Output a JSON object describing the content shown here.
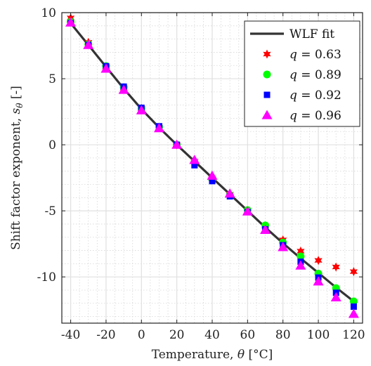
{
  "chart_data": {
    "type": "scatter",
    "xlabel": "Temperature, θ [°C]",
    "ylabel": "Shift factor exponent, s_θ [-]",
    "xlim": [
      -45,
      125
    ],
    "ylim": [
      -13.5,
      10
    ],
    "x_ticks": [
      -40,
      -20,
      0,
      20,
      40,
      60,
      80,
      100,
      120
    ],
    "x_tick_labels": [
      "-40",
      "-20",
      "0",
      "20",
      "40",
      "60",
      "80",
      "100",
      "120"
    ],
    "y_ticks": [
      -10,
      -5,
      0,
      5,
      10
    ],
    "y_tick_labels": [
      "-10",
      "-5",
      "0",
      "5",
      "10"
    ],
    "grid": true,
    "minor_grid": true,
    "legend_position": "top-right",
    "fit": {
      "name": "WLF fit",
      "color": "#333333",
      "x": [
        -40,
        -30,
        -20,
        -10,
        0,
        10,
        20,
        30,
        40,
        50,
        60,
        70,
        80,
        90,
        100,
        110,
        120
      ],
      "y": [
        9.2,
        7.55,
        5.9,
        4.25,
        2.7,
        1.3,
        0.0,
        -1.25,
        -2.5,
        -3.75,
        -5.0,
        -6.25,
        -7.45,
        -8.6,
        -9.7,
        -10.8,
        -11.85
      ]
    },
    "series": [
      {
        "name": "q = 0.63",
        "marker": "star",
        "color": "#ff0000",
        "x": [
          -40,
          -30,
          -20,
          -10,
          0,
          10,
          20,
          30,
          40,
          50,
          60,
          70,
          80,
          90,
          100,
          110,
          120
        ],
        "y": [
          9.6,
          7.75,
          5.9,
          4.3,
          2.75,
          1.3,
          0.0,
          -1.25,
          -2.55,
          -3.75,
          -5.0,
          -6.15,
          -7.2,
          -8.05,
          -8.75,
          -9.25,
          -9.6
        ]
      },
      {
        "name": "q = 0.89",
        "marker": "circle",
        "color": "#00ff00",
        "x": [
          -40,
          -30,
          -20,
          -10,
          0,
          10,
          20,
          30,
          40,
          50,
          60,
          70,
          80,
          90,
          100,
          110,
          120
        ],
        "y": [
          9.3,
          7.6,
          5.95,
          4.35,
          2.75,
          1.35,
          0.0,
          -1.3,
          -2.6,
          -3.8,
          -4.95,
          -6.1,
          -7.4,
          -8.45,
          -9.75,
          -10.85,
          -11.85
        ]
      },
      {
        "name": "q = 0.92",
        "marker": "square",
        "color": "#0000ff",
        "x": [
          -40,
          -30,
          -20,
          -10,
          0,
          10,
          20,
          30,
          40,
          50,
          60,
          70,
          80,
          90,
          100,
          110,
          120
        ],
        "y": [
          9.2,
          7.55,
          5.95,
          4.4,
          2.8,
          1.4,
          0.0,
          -1.55,
          -2.75,
          -3.9,
          -5.1,
          -6.4,
          -7.6,
          -8.85,
          -10.05,
          -11.2,
          -12.25
        ]
      },
      {
        "name": "q = 0.96",
        "marker": "triangle",
        "color": "#ff00ff",
        "x": [
          -40,
          -30,
          -20,
          -10,
          0,
          10,
          20,
          30,
          40,
          50,
          60,
          70,
          80,
          90,
          100,
          110,
          120
        ],
        "y": [
          9.25,
          7.55,
          5.75,
          4.15,
          2.6,
          1.25,
          0.0,
          -1.15,
          -2.35,
          -3.7,
          -5.05,
          -6.45,
          -7.75,
          -9.15,
          -10.35,
          -11.55,
          -12.8
        ]
      }
    ]
  }
}
